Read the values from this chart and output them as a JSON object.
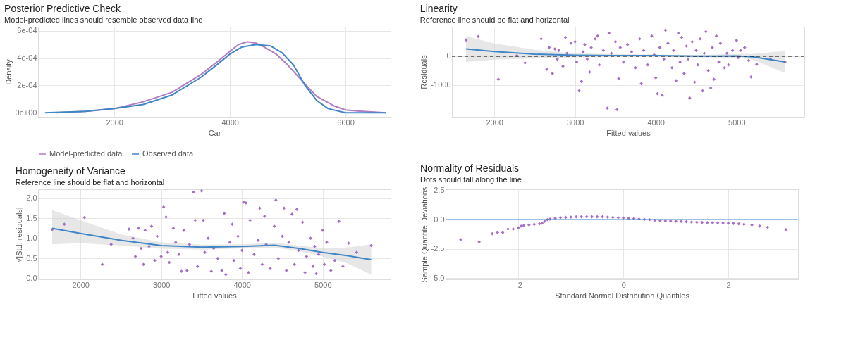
{
  "chart_data": [
    {
      "type": "line",
      "title": "Posterior Predictive Check",
      "subtitle": "Model-predicted lines should resemble observed data line",
      "xlabel": "Car",
      "ylabel": "Density",
      "xlim": [
        680,
        6780
      ],
      "xticks": [
        2000,
        4000,
        6000
      ],
      "ylim": [
        -3e-05,
        0.00063
      ],
      "yticks": [
        {
          "value": 0,
          "label": "0e+00"
        },
        {
          "value": 0.0002,
          "label": "2e-04"
        },
        {
          "value": 0.0004,
          "label": "4e-04"
        },
        {
          "value": 0.0006,
          "label": "6e-04"
        }
      ],
      "grid": true,
      "legend": "bottom",
      "line_style": "solid",
      "marker": "none",
      "series": [
        {
          "name": "Model-predicted data",
          "color": "#b07cc6",
          "x": [
            1000,
            1500,
            2000,
            2500,
            3000,
            3500,
            3800,
            4000,
            4150,
            4300,
            4450,
            4600,
            4800,
            5000,
            5300,
            5500,
            5800,
            6000,
            6300,
            6700
          ],
          "values": [
            0,
            1e-05,
            3e-05,
            8e-05,
            0.00015,
            0.00028,
            0.00038,
            0.00045,
            0.0005,
            0.00052,
            0.00051,
            0.00048,
            0.00043,
            0.00035,
            0.00021,
            0.00012,
            5e-05,
            2e-05,
            1e-05,
            0
          ]
        },
        {
          "name": "Observed data",
          "color": "#3f86c6",
          "x": [
            800,
            1500,
            2000,
            2500,
            3000,
            3500,
            3800,
            4000,
            4200,
            4450,
            4700,
            4900,
            5100,
            5300,
            5500,
            5700,
            6000,
            6700
          ],
          "values": [
            0,
            1e-05,
            3e-05,
            6e-05,
            0.00013,
            0.00026,
            0.00036,
            0.00043,
            0.00048,
            0.0005,
            0.00049,
            0.00044,
            0.00035,
            0.0002,
            9e-05,
            3e-05,
            0,
            0
          ]
        }
      ]
    },
    {
      "type": "scatter",
      "title": "Linearity",
      "subtitle": "Reference line should be flat and horizontal",
      "xlabel": "Fitted values",
      "ylabel": "Residuals",
      "xlim": [
        1475,
        5840
      ],
      "xticks": [
        2000,
        3000,
        4000,
        5000
      ],
      "ylim": [
        -2100,
        1020
      ],
      "yticks": [
        -1000,
        0
      ],
      "grid": true,
      "marker": "diamond",
      "ref_lines": [
        {
          "axis": "y",
          "value": 0,
          "color": "#000000",
          "line_style": "dashed"
        }
      ],
      "series": [
        {
          "color": "#9b5fc0",
          "x": [
            1650,
            1800,
            2050,
            2280,
            2380,
            2580,
            2650,
            2680,
            2720,
            2750,
            2780,
            2800,
            2850,
            2880,
            2900,
            2950,
            3000,
            3020,
            3050,
            3080,
            3100,
            3120,
            3150,
            3180,
            3200,
            3250,
            3280,
            3300,
            3350,
            3400,
            3420,
            3450,
            3500,
            3520,
            3540,
            3560,
            3600,
            3650,
            3700,
            3750,
            3800,
            3820,
            3850,
            3900,
            3950,
            3980,
            4000,
            4020,
            4050,
            4080,
            4100,
            4120,
            4150,
            4200,
            4220,
            4250,
            4280,
            4300,
            4320,
            4350,
            4380,
            4400,
            4420,
            4450,
            4480,
            4500,
            4520,
            4550,
            4580,
            4600,
            4620,
            4650,
            4680,
            4700,
            4720,
            4750,
            4780,
            4800,
            4850,
            4880,
            4900,
            4950,
            5000,
            5020,
            5050,
            5100,
            5150,
            5180,
            5250,
            5420,
            5600
          ],
          "values": [
            560,
            680,
            -800,
            20,
            -230,
            600,
            -450,
            300,
            -600,
            250,
            -100,
            200,
            -350,
            650,
            100,
            450,
            500,
            -200,
            -1200,
            -870,
            150,
            400,
            -100,
            -550,
            300,
            600,
            700,
            -300,
            200,
            -1800,
            800,
            100,
            500,
            -1850,
            -780,
            300,
            -200,
            400,
            150,
            -400,
            600,
            -950,
            200,
            -300,
            700,
            50,
            -750,
            -1300,
            300,
            -1350,
            -100,
            900,
            450,
            -400,
            200,
            -850,
            800,
            -200,
            650,
            -600,
            350,
            -100,
            -1450,
            500,
            -900,
            200,
            -300,
            600,
            -1200,
            100,
            850,
            -500,
            -1100,
            300,
            -800,
            700,
            -200,
            450,
            -400,
            100,
            -300,
            200,
            550,
            -50,
            200,
            300,
            -150,
            -720,
            -280,
            -100,
            -200
          ]
        },
        {
          "type": "line",
          "marker": "none",
          "line_style": "solid",
          "color": "#3f86c6",
          "x": [
            1650,
            2000,
            2500,
            3000,
            3500,
            4000,
            4500,
            5000,
            5200,
            5600
          ],
          "values": [
            250,
            160,
            70,
            30,
            20,
            20,
            0,
            10,
            -20,
            -200
          ],
          "lower": [
            -200,
            -120,
            -80,
            -40,
            -30,
            -20,
            -40,
            -50,
            -120,
            -580
          ],
          "upper": [
            700,
            440,
            220,
            100,
            70,
            60,
            40,
            70,
            80,
            180
          ]
        }
      ]
    },
    {
      "type": "scatter",
      "title": "Homogeneity of Variance",
      "subtitle": "Reference line should be flat and horizontal",
      "xlabel": "Fitted values",
      "ylabel": "√|Std. residuals|",
      "xlim": [
        1475,
        5840
      ],
      "xticks": [
        2000,
        3000,
        4000,
        5000
      ],
      "ylim": [
        -0.02,
        2.22
      ],
      "yticks": [
        {
          "value": 0,
          "label": "0.0"
        },
        0.5,
        {
          "value": 1,
          "label": "1.0"
        },
        1.5,
        {
          "value": 2,
          "label": "2.0"
        }
      ],
      "grid": true,
      "marker": "diamond",
      "series": [
        {
          "color": "#9b5fc0",
          "x": [
            1650,
            1800,
            2050,
            2270,
            2380,
            2600,
            2650,
            2680,
            2720,
            2750,
            2780,
            2800,
            2850,
            2880,
            2920,
            2950,
            3000,
            3030,
            3060,
            3080,
            3100,
            3150,
            3180,
            3220,
            3250,
            3280,
            3320,
            3350,
            3400,
            3420,
            3450,
            3500,
            3520,
            3540,
            3580,
            3620,
            3650,
            3700,
            3750,
            3780,
            3800,
            3850,
            3880,
            3900,
            3950,
            3980,
            4000,
            4020,
            4050,
            4080,
            4100,
            4150,
            4200,
            4220,
            4250,
            4280,
            4300,
            4350,
            4400,
            4420,
            4450,
            4500,
            4520,
            4550,
            4580,
            4620,
            4650,
            4680,
            4700,
            4750,
            4780,
            4800,
            4850,
            4880,
            4900,
            4920,
            4950,
            5000,
            5020,
            5050,
            5100,
            5150,
            5200,
            5250,
            5320,
            5420,
            5600
          ],
          "values": [
            1.22,
            1.35,
            1.52,
            0.35,
            0.85,
            1.23,
            1.0,
            0.55,
            1.25,
            0.75,
            0.35,
            1.2,
            0.8,
            1.3,
            0.45,
            1.05,
            0.55,
            1.78,
            1.53,
            0.65,
            0.4,
            1.25,
            0.9,
            0.6,
            0.18,
            1.2,
            0.2,
            0.85,
            2.15,
            1.45,
            0.3,
            2.18,
            1.45,
            0.65,
            1.0,
            0.18,
            0.75,
            0.5,
            0.2,
            1.62,
            0.1,
            0.9,
            1.35,
            0.45,
            1.05,
            0.25,
            0.7,
            1.9,
            1.88,
            0.15,
            1.45,
            0.6,
            0.95,
            1.75,
            0.35,
            1.55,
            0.85,
            0.25,
            1.3,
            1.95,
            0.5,
            1.05,
            1.75,
            0.2,
            0.9,
            1.6,
            0.35,
            1.72,
            0.7,
            1.4,
            0.15,
            0.55,
            1.0,
            0.3,
            0.8,
            0.12,
            0.6,
            1.2,
            0.35,
            0.9,
            0.2,
            0.45,
            1.42,
            0.3,
            0.88,
            0.65,
            0.82
          ]
        },
        {
          "type": "line",
          "marker": "none",
          "line_style": "solid",
          "color": "#3f86c6",
          "x": [
            1650,
            2000,
            2500,
            3000,
            3500,
            4000,
            4400,
            4700,
            5000,
            5300,
            5600
          ],
          "values": [
            1.25,
            1.12,
            0.95,
            0.82,
            0.78,
            0.8,
            0.83,
            0.75,
            0.65,
            0.57,
            0.47
          ],
          "lower": [
            0.85,
            0.88,
            0.82,
            0.74,
            0.72,
            0.75,
            0.77,
            0.68,
            0.55,
            0.38,
            0.1
          ],
          "upper": [
            1.7,
            1.45,
            1.1,
            0.9,
            0.84,
            0.85,
            0.89,
            0.82,
            0.76,
            0.77,
            0.85
          ]
        }
      ]
    },
    {
      "type": "scatter",
      "title": "Normality of Residuals",
      "subtitle": "Dots should fall along the line",
      "xlabel": "Standard Normal Distribution Quantiles",
      "ylabel": "Sample Quantile Deviations",
      "xlim": [
        -3.39,
        3.33
      ],
      "xticks": [
        -2,
        0,
        2
      ],
      "ylim": [
        -5.1,
        2.6
      ],
      "yticks": [
        {
          "value": -5,
          "label": "-5.0"
        },
        -2.5,
        {
          "value": 0,
          "label": "0.0"
        },
        2.5
      ],
      "grid": true,
      "marker": "diamond",
      "ref_lines": [
        {
          "axis": "y",
          "value": 0,
          "color": "#3f86c6",
          "line_style": "solid"
        }
      ],
      "series": [
        {
          "color": "#9b5fc0",
          "x": [
            -3.1,
            -2.75,
            -2.5,
            -2.4,
            -2.3,
            -2.2,
            -2.1,
            -2.0,
            -1.95,
            -1.9,
            -1.8,
            -1.7,
            -1.6,
            -1.55,
            -1.5,
            -1.45,
            -1.4,
            -1.3,
            -1.2,
            -1.1,
            -1.0,
            -0.9,
            -0.8,
            -0.7,
            -0.6,
            -0.5,
            -0.4,
            -0.3,
            -0.2,
            -0.1,
            0,
            0.1,
            0.2,
            0.3,
            0.4,
            0.5,
            0.6,
            0.7,
            0.8,
            0.9,
            1.0,
            1.1,
            1.2,
            1.3,
            1.4,
            1.5,
            1.6,
            1.7,
            1.8,
            1.9,
            2.0,
            2.1,
            2.2,
            2.3,
            2.45,
            2.6,
            2.75,
            3.1
          ],
          "values": [
            -1.7,
            -1.9,
            -1.2,
            -1.1,
            -1.1,
            -0.8,
            -0.8,
            -0.7,
            -0.55,
            -0.5,
            -0.45,
            -0.4,
            -0.35,
            -0.3,
            -0.15,
            0,
            0.05,
            0.12,
            0.18,
            0.2,
            0.22,
            0.25,
            0.25,
            0.25,
            0.25,
            0.25,
            0.25,
            0.22,
            0.2,
            0.18,
            0.15,
            0.12,
            0.1,
            0.06,
            0.03,
            0,
            -0.05,
            -0.08,
            -0.1,
            -0.12,
            -0.13,
            -0.15,
            -0.17,
            -0.2,
            -0.22,
            -0.24,
            -0.25,
            -0.26,
            -0.27,
            -0.28,
            -0.3,
            -0.32,
            -0.35,
            -0.4,
            -0.45,
            -0.55,
            -0.65,
            -0.85
          ]
        }
      ]
    }
  ]
}
